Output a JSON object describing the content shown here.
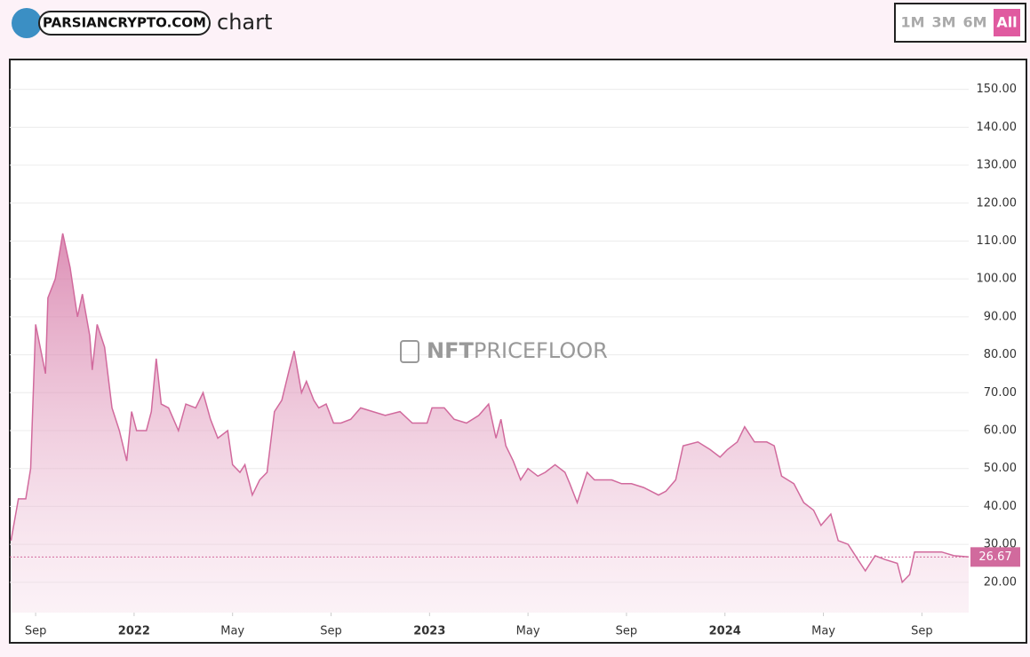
{
  "header": {
    "logo": "PARSIANCRYPTO.COM",
    "title": "chart",
    "ranges": [
      "1M",
      "3M",
      "6M",
      "All"
    ],
    "active_range": "All"
  },
  "watermark": {
    "strong": "NFT",
    "rest": "PRICEFLOOR"
  },
  "chart_data": {
    "type": "area",
    "color": "#d16a9d",
    "x": [
      -1.0,
      -0.7,
      -0.4,
      -0.2,
      0,
      0.4,
      0.5,
      0.8,
      1.1,
      1.4,
      1.7,
      1.9,
      2.2,
      2.3,
      2.5,
      2.8,
      3.1,
      3.4,
      3.7,
      3.9,
      4.1,
      4.5,
      4.7,
      4.9,
      5.1,
      5.4,
      5.8,
      6.1,
      6.5,
      6.8,
      7.1,
      7.4,
      7.8,
      8.0,
      8.3,
      8.5,
      8.8,
      9.1,
      9.4,
      9.7,
      10.0,
      10.3,
      10.5,
      10.8,
      11.0,
      11.3,
      11.5,
      11.8,
      12.1,
      12.4,
      12.8,
      13.2,
      13.7,
      14.2,
      14.8,
      15.3,
      15.9,
      16.1,
      16.6,
      17.0,
      17.5,
      18.0,
      18.4,
      18.7,
      18.9,
      19.1,
      19.4,
      19.7,
      20.0,
      20.4,
      20.7,
      21.1,
      21.5,
      21.7,
      22.0,
      22.4,
      22.7,
      23.4,
      23.8,
      24.2,
      24.7,
      25.3,
      25.6,
      26.0,
      26.3,
      26.9,
      27.4,
      27.8,
      28.1,
      28.5,
      28.8,
      29.2,
      29.7,
      30.0,
      30.3,
      30.8,
      31.2,
      31.6,
      31.9,
      32.3,
      32.6,
      33.0,
      33.4,
      33.7,
      34.1,
      34.5,
      35.0,
      35.2,
      35.5,
      35.7,
      36.3,
      36.8,
      37.3,
      37.9
    ],
    "values": [
      31,
      42,
      42,
      50,
      88,
      75,
      95,
      100,
      112,
      103,
      90,
      96,
      85,
      76,
      88,
      82,
      66,
      60,
      52,
      65,
      60,
      60,
      65,
      79,
      67,
      66,
      60,
      67,
      66,
      70,
      63,
      58,
      60,
      51,
      49,
      51,
      43,
      47,
      49,
      65,
      68,
      76,
      81,
      70,
      73,
      68,
      66,
      67,
      62,
      62,
      63,
      66,
      65,
      64,
      65,
      62,
      62,
      66,
      66,
      63,
      62,
      64,
      67,
      58,
      63,
      56,
      52,
      47,
      50,
      48,
      49,
      51,
      49,
      46,
      41,
      49,
      47,
      47,
      46,
      46,
      45,
      43,
      44,
      47,
      56,
      57,
      55,
      53,
      55,
      57,
      61,
      57,
      57,
      56,
      48,
      46,
      41,
      39,
      35,
      38,
      31,
      30,
      26,
      23,
      27,
      26,
      25,
      20,
      22,
      28,
      28,
      28,
      27,
      26.67
    ],
    "xlim": [
      -1.05,
      37.9
    ],
    "xticks": [
      {
        "value": 0,
        "label": "Sep"
      },
      {
        "value": 4,
        "label": "2022"
      },
      {
        "value": 8,
        "label": "May"
      },
      {
        "value": 12,
        "label": "Sep"
      },
      {
        "value": 16,
        "label": "2023"
      },
      {
        "value": 20,
        "label": "May"
      },
      {
        "value": 24,
        "label": "Sep"
      },
      {
        "value": 28,
        "label": "2024"
      },
      {
        "value": 32,
        "label": "May"
      },
      {
        "value": 36,
        "label": "Sep"
      }
    ],
    "ylim": [
      12,
      156
    ],
    "yticks": [
      {
        "value": 20,
        "label": "20.00"
      },
      {
        "value": 30,
        "label": "30.00"
      },
      {
        "value": 40,
        "label": "40.00"
      },
      {
        "value": 50,
        "label": "50.00"
      },
      {
        "value": 60,
        "label": "60.00"
      },
      {
        "value": 70,
        "label": "70.00"
      },
      {
        "value": 80,
        "label": "80.00"
      },
      {
        "value": 90,
        "label": "90.00"
      },
      {
        "value": 100,
        "label": "100.00"
      },
      {
        "value": 110,
        "label": "110.00"
      },
      {
        "value": 120,
        "label": "120.00"
      },
      {
        "value": 130,
        "label": "130.00"
      },
      {
        "value": 140,
        "label": "140.00"
      },
      {
        "value": 150,
        "label": "150.00"
      }
    ],
    "grid": true
  }
}
